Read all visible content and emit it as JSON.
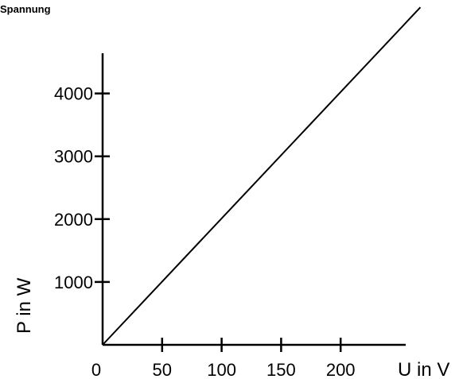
{
  "chart_data": {
    "type": "line",
    "title": "Spannung",
    "xlabel": "U in V",
    "ylabel": "P in W",
    "x_ticks": [
      0,
      50,
      100,
      150,
      200
    ],
    "y_ticks": [
      1000,
      2000,
      3000,
      4000
    ],
    "xlim": [
      0,
      250
    ],
    "ylim": [
      0,
      4650
    ],
    "series": [
      {
        "x": [
          0,
          267
        ],
        "y": [
          0,
          5370
        ]
      }
    ],
    "grid": false,
    "colors": {
      "axis": "#000000",
      "line": "#000000"
    }
  }
}
